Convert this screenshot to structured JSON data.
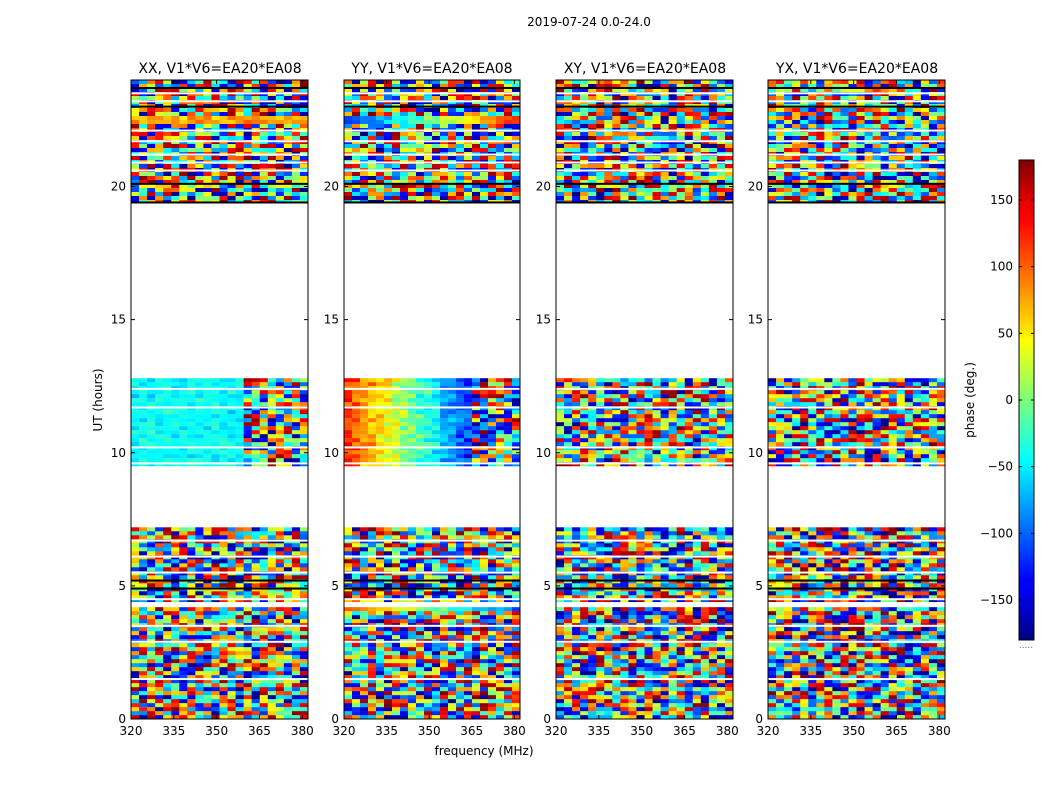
{
  "figure": {
    "suptitle": "2019-07-24 0.0-24.0",
    "xlabel": "frequency (MHz)",
    "ylabel": "UT (hours)",
    "colorbar_label": "phase (deg.)",
    "colorbar_dots": "....."
  },
  "chart_data": {
    "type": "heatmap",
    "title": "2019-07-24 0.0-24.0",
    "xlabel": "frequency (MHz)",
    "ylabel": "UT (hours)",
    "xlim": [
      320,
      382
    ],
    "ylim": [
      0,
      24
    ],
    "xticks": [
      320,
      335,
      350,
      365,
      380
    ],
    "yticks": [
      0,
      5,
      10,
      15,
      20
    ],
    "colormap": "jet",
    "colorbar": {
      "label": "phase (deg.)",
      "range": [
        -180,
        180
      ],
      "ticks": [
        -150,
        -100,
        -50,
        0,
        50,
        100,
        150
      ],
      "tick_labels": [
        "−150",
        "−100",
        "−50",
        "0",
        "50",
        "100",
        "150"
      ]
    },
    "data_time_ranges_hours": [
      [
        0.0,
        4.2
      ],
      [
        4.4,
        7.2
      ],
      [
        9.5,
        12.8
      ],
      [
        19.4,
        24.0
      ]
    ],
    "panels": [
      {
        "title": "XX, V1*V6=EA20*EA08",
        "description": "noisy phase; coherent cyan near 0 to -40 deg around 9.5-12.8 h below ~360 MHz"
      },
      {
        "title": "YY, V1*V6=EA20*EA08",
        "description": "phase gradient across frequency around 9.5-12.8 h: red/orange at 320 MHz through yellow/green to blue near 360 MHz"
      },
      {
        "title": "XY, V1*V6=EA20*EA08",
        "description": "noisy random phase"
      },
      {
        "title": "YX, V1*V6=EA20*EA08",
        "description": "noisy random phase"
      }
    ]
  }
}
